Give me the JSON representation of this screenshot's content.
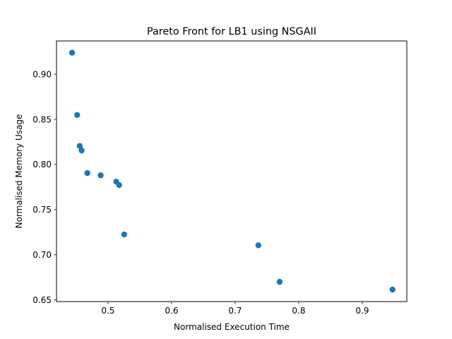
{
  "chart_data": {
    "type": "scatter",
    "title": "Pareto Front for LB1 using NSGAII",
    "xlabel": "Normalised Execution Time",
    "ylabel": "Normalised Memory Usage",
    "xlim": [
      0.419,
      0.97
    ],
    "ylim": [
      0.6482,
      0.9368
    ],
    "grid": false,
    "x_ticks": [
      0.5,
      0.6,
      0.7,
      0.8,
      0.9
    ],
    "x_tick_labels": [
      "0.5",
      "0.6",
      "0.7",
      "0.8",
      "0.9"
    ],
    "y_ticks": [
      0.65,
      0.7,
      0.75,
      0.8,
      0.85,
      0.9
    ],
    "y_tick_labels": [
      "0.65",
      "0.70",
      "0.75",
      "0.80",
      "0.85",
      "0.90"
    ],
    "series": [
      {
        "color": "#1f77b4",
        "marker": "circle",
        "points": [
          {
            "x": 0.4435,
            "y": 0.9238
          },
          {
            "x": 0.4515,
            "y": 0.8548
          },
          {
            "x": 0.4555,
            "y": 0.8205
          },
          {
            "x": 0.4585,
            "y": 0.8155
          },
          {
            "x": 0.4675,
            "y": 0.7905
          },
          {
            "x": 0.4885,
            "y": 0.788
          },
          {
            "x": 0.513,
            "y": 0.781
          },
          {
            "x": 0.5175,
            "y": 0.7772
          },
          {
            "x": 0.5255,
            "y": 0.7225
          },
          {
            "x": 0.7365,
            "y": 0.7105
          },
          {
            "x": 0.77,
            "y": 0.67
          },
          {
            "x": 0.9475,
            "y": 0.6615
          }
        ]
      }
    ]
  }
}
